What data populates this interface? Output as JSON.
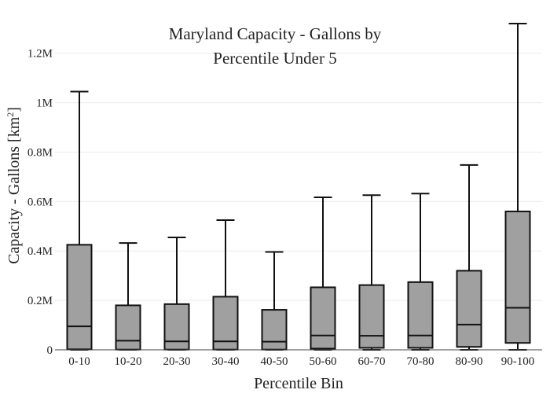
{
  "chart_data": {
    "type": "box",
    "title_lines": [
      "Maryland Capacity - Gallons by",
      "Percentile Under 5"
    ],
    "xlabel": "Percentile Bin",
    "ylabel_prefix": "Capacity - Gallons  [km",
    "ylabel_sup": "2",
    "ylabel_suffix": "]",
    "ylim": [
      0,
      1320000
    ],
    "y_ticks": [
      {
        "value": 0,
        "label": "0"
      },
      {
        "value": 200000,
        "label": "0.2M"
      },
      {
        "value": 400000,
        "label": "0.4M"
      },
      {
        "value": 600000,
        "label": "0.6M"
      },
      {
        "value": 800000,
        "label": "0.8M"
      },
      {
        "value": 1000000,
        "label": "1M"
      },
      {
        "value": 1200000,
        "label": "1.2M"
      }
    ],
    "grid": true,
    "colors": {
      "box_fill": "#a0a0a0",
      "box_stroke": "#111111",
      "grid": "#ececec"
    },
    "categories": [
      "0-10",
      "10-20",
      "20-30",
      "30-40",
      "40-50",
      "50-60",
      "60-70",
      "70-80",
      "80-90",
      "90-100"
    ],
    "boxes": [
      {
        "min": 0,
        "q1": 2000,
        "median": 95000,
        "q3": 425000,
        "max": 1045000
      },
      {
        "min": 0,
        "q1": 1000,
        "median": 37000,
        "q3": 180000,
        "max": 432000
      },
      {
        "min": 0,
        "q1": 1000,
        "median": 34000,
        "q3": 185000,
        "max": 455000
      },
      {
        "min": 0,
        "q1": 1000,
        "median": 34000,
        "q3": 215000,
        "max": 525000
      },
      {
        "min": 0,
        "q1": 1000,
        "median": 33000,
        "q3": 162000,
        "max": 396000
      },
      {
        "min": 0,
        "q1": 5000,
        "median": 58000,
        "q3": 253000,
        "max": 617000
      },
      {
        "min": 0,
        "q1": 8000,
        "median": 57000,
        "q3": 262000,
        "max": 626000
      },
      {
        "min": 0,
        "q1": 8000,
        "median": 58000,
        "q3": 274000,
        "max": 632000
      },
      {
        "min": 0,
        "q1": 12000,
        "median": 102000,
        "q3": 320000,
        "max": 748000
      },
      {
        "min": 0,
        "q1": 28000,
        "median": 170000,
        "q3": 560000,
        "max": 1320000
      }
    ]
  }
}
